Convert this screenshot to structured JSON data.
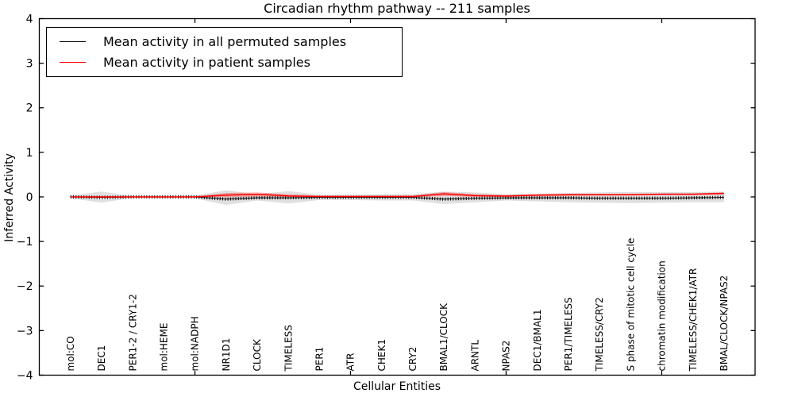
{
  "figure": {
    "title": "Circadian rhythm pathway -- 211 samples",
    "xlabel": "Cellular Entities",
    "ylabel": "Inferred Activity"
  },
  "legend": {
    "position": "upper left",
    "items": [
      {
        "label": "Mean activity in all permuted samples",
        "color": "#000000"
      },
      {
        "label": "Mean activity in patient samples",
        "color": "#ff0000"
      }
    ]
  },
  "chart_data": {
    "type": "line",
    "title": "Circadian rhythm pathway -- 211 samples",
    "xlabel": "Cellular Entities",
    "ylabel": "Inferred Activity",
    "ylim": [
      -4,
      4
    ],
    "yticks": [
      4,
      3,
      2,
      1,
      0,
      -1,
      -2,
      -3,
      -4
    ],
    "ytick_labels": [
      "4",
      "3",
      "2",
      "1",
      "0",
      "−1",
      "−2",
      "−3",
      "−4"
    ],
    "xlim_units": [
      0,
      23
    ],
    "x_numeric_ticks": [
      5,
      10,
      15,
      20
    ],
    "grid": false,
    "legend_position": "upper left",
    "categories": [
      "mol:CO",
      "DEC1",
      "PER1-2 / CRY1-2",
      "mol:HEME",
      "mol:NADPH",
      "NR1D1",
      "CLOCK",
      "TIMELESS",
      "PER1",
      "ATR",
      "CHEK1",
      "CRY2",
      "BMAL1/CLOCK",
      "ARNTL",
      "NPAS2",
      "DEC1/BMAL1",
      "PER1/TIMELESS",
      "TIMELESS/CRY2",
      "S phase of mitotic cell cycle",
      "chromatin modification",
      "TIMELESS/CHEK1/ATR",
      "BMAL/CLOCK/NPAS2"
    ],
    "series": [
      {
        "name": "Mean activity in all permuted samples",
        "color": "#000000",
        "style": "solid-with-tick-markers",
        "values": [
          0.0,
          -0.01,
          0.0,
          0.0,
          0.0,
          -0.05,
          -0.02,
          -0.02,
          -0.01,
          -0.01,
          -0.01,
          -0.01,
          -0.05,
          -0.03,
          -0.02,
          -0.02,
          -0.02,
          -0.03,
          -0.03,
          -0.03,
          -0.02,
          -0.01
        ]
      },
      {
        "name": "Mean activity in patient samples",
        "color": "#ff0000",
        "style": "solid",
        "values": [
          0.0,
          0.0,
          0.0,
          0.0,
          0.0,
          0.04,
          0.06,
          0.02,
          0.01,
          0.01,
          0.01,
          0.01,
          0.07,
          0.03,
          0.02,
          0.04,
          0.05,
          0.05,
          0.05,
          0.06,
          0.06,
          0.08
        ]
      }
    ],
    "bands": [
      {
        "name": "permuted-samples-range",
        "color": "rgba(130,130,130,0.25)",
        "upper": [
          0.03,
          0.12,
          0.02,
          0.02,
          0.03,
          0.15,
          0.06,
          0.13,
          0.05,
          0.05,
          0.06,
          0.06,
          0.12,
          0.1,
          0.06,
          0.07,
          0.09,
          0.1,
          0.11,
          0.11,
          0.11,
          0.12
        ],
        "lower": [
          -0.03,
          -0.13,
          -0.02,
          -0.02,
          -0.03,
          -0.18,
          -0.08,
          -0.15,
          -0.07,
          -0.07,
          -0.08,
          -0.08,
          -0.16,
          -0.12,
          -0.08,
          -0.1,
          -0.12,
          -0.13,
          -0.14,
          -0.13,
          -0.12,
          -0.12
        ]
      },
      {
        "name": "patient-samples-range",
        "color": "rgba(255,0,0,0.28)",
        "upper": [
          0.01,
          0.02,
          0.01,
          0.01,
          0.01,
          0.09,
          0.1,
          0.06,
          0.03,
          0.03,
          0.03,
          0.03,
          0.11,
          0.06,
          0.04,
          0.06,
          0.07,
          0.07,
          0.07,
          0.08,
          0.08,
          0.1
        ],
        "lower": [
          -0.01,
          -0.02,
          -0.01,
          -0.01,
          -0.01,
          -0.01,
          0.01,
          0.0,
          -0.01,
          -0.01,
          -0.01,
          -0.01,
          0.02,
          0.0,
          0.0,
          0.01,
          0.02,
          0.03,
          0.03,
          0.04,
          0.04,
          0.05
        ]
      }
    ]
  }
}
